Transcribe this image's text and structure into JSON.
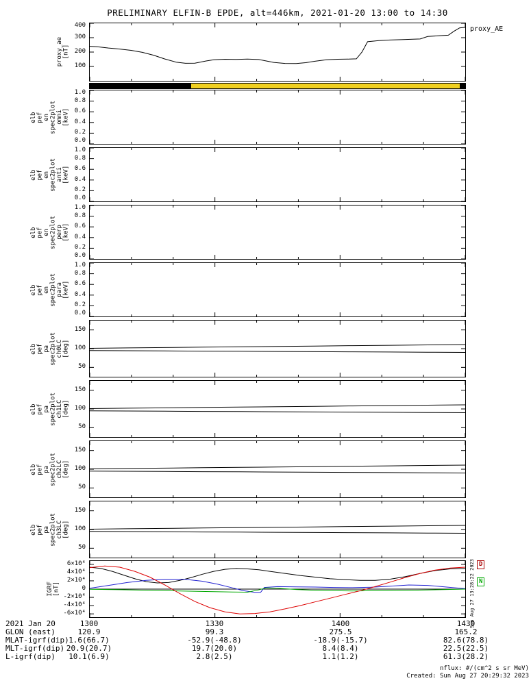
{
  "title": "PRELIMINARY ELFIN-B EPDE, alt=446km, 2021-01-20 13:00 to 14:30",
  "proxy_right_label": "proxy_AE",
  "fast_bar": {
    "segments": [
      {
        "color": "#000000",
        "width_pct": 27
      },
      {
        "color": "#f0d020",
        "width_pct": 71.5
      },
      {
        "color": "#000000",
        "width_pct": 1.5
      }
    ]
  },
  "x_axis": {
    "tick_labels": [
      "1300",
      "1330",
      "1400",
      "1430"
    ],
    "major_fracs": [
      0,
      0.3333,
      0.6667,
      1
    ],
    "minor_intervals": 9
  },
  "chart_data": {
    "type": "line",
    "time_range": "2021-01-20 13:00 to 14:30",
    "panels": [
      {
        "id": "proxy_ae",
        "ylabel": "proxy_ae\n[nT]",
        "ylim": [
          0,
          400
        ],
        "yticks": [
          {
            "v": 400,
            "label": "400"
          },
          {
            "v": 300,
            "label": "300"
          },
          {
            "v": 200,
            "label": "200"
          },
          {
            "v": 100,
            "label": "100"
          }
        ],
        "series": [
          {
            "name": "proxy_AE",
            "color": "#000000",
            "x": [
              0,
              0.02,
              0.05,
              0.08,
              0.11,
              0.14,
              0.17,
              0.2,
              0.23,
              0.255,
              0.28,
              0.31,
              0.33,
              0.36,
              0.39,
              0.42,
              0.45,
              0.47,
              0.49,
              0.52,
              0.55,
              0.575,
              0.6,
              0.63,
              0.66,
              0.69,
              0.71,
              0.725,
              0.74,
              0.77,
              0.8,
              0.83,
              0.86,
              0.88,
              0.9,
              0.93,
              0.955,
              0.97,
              0.985,
              1
            ],
            "y": [
              240,
              237,
              228,
              221,
              212,
              198,
              178,
              152,
              130,
              122,
              123,
              138,
              146,
              150,
              149,
              151,
              148,
              138,
              128,
              121,
              120,
              126,
              136,
              146,
              150,
              151,
              153,
              200,
              272,
              280,
              284,
              286,
              289,
              291,
              308,
              314,
              317,
              345,
              368,
              372
            ]
          }
        ]
      },
      {
        "id": "elb_pef_en_spec2plot_omni",
        "ylabel": "elb\npef\nen\nspec2plot\nomni\n[keV]",
        "ylim": [
          0,
          1
        ],
        "yticks": [
          {
            "v": 1,
            "label": "1.0"
          },
          {
            "v": 0.8,
            "label": "0.8"
          },
          {
            "v": 0.6,
            "label": "0.6"
          },
          {
            "v": 0.4,
            "label": "0.4"
          },
          {
            "v": 0.2,
            "label": "0.2"
          },
          {
            "v": 0,
            "label": "0.0"
          }
        ],
        "series": []
      },
      {
        "id": "elb_pef_en_spec2plot_anti",
        "ylabel": "elb\npef\nen\nspec2plot\nanti\n[keV]",
        "ylim": [
          0,
          1
        ],
        "yticks": [
          {
            "v": 1,
            "label": "1.0"
          },
          {
            "v": 0.8,
            "label": "0.8"
          },
          {
            "v": 0.6,
            "label": "0.6"
          },
          {
            "v": 0.4,
            "label": "0.4"
          },
          {
            "v": 0.2,
            "label": "0.2"
          },
          {
            "v": 0,
            "label": "0.0"
          }
        ],
        "series": []
      },
      {
        "id": "elb_pef_en_spec2plot_perp",
        "ylabel": "elb\npef\nen\nspec2plot\nperp\n[keV]",
        "ylim": [
          0,
          1
        ],
        "yticks": [
          {
            "v": 1,
            "label": "1.0"
          },
          {
            "v": 0.8,
            "label": "0.8"
          },
          {
            "v": 0.6,
            "label": "0.6"
          },
          {
            "v": 0.4,
            "label": "0.4"
          },
          {
            "v": 0.2,
            "label": "0.2"
          },
          {
            "v": 0,
            "label": "0.0"
          }
        ],
        "series": []
      },
      {
        "id": "elb_pef_en_spec2plot_para",
        "ylabel": "elb\npef\nen\nspec2plot\npara\n[keV]",
        "ylim": [
          0,
          1
        ],
        "yticks": [
          {
            "v": 1,
            "label": "1.0"
          },
          {
            "v": 0.8,
            "label": "0.8"
          },
          {
            "v": 0.6,
            "label": "0.6"
          },
          {
            "v": 0.4,
            "label": "0.4"
          },
          {
            "v": 0.2,
            "label": "0.2"
          },
          {
            "v": 0,
            "label": "0.0"
          }
        ],
        "series": []
      },
      {
        "id": "elb_pef_pa_spec2plot_ch0LC",
        "ylabel": "elb\npef\npa\nspec2plot\nch0LC\n[deg]",
        "ylim": [
          25,
          175
        ],
        "yticks": [
          {
            "v": 150,
            "label": "150"
          },
          {
            "v": 100,
            "label": "100"
          },
          {
            "v": 50,
            "label": "50"
          }
        ],
        "series": [
          {
            "name": "losscone-upper",
            "color": "#000000",
            "x": [
              0,
              0.1,
              0.2,
              0.3,
              0.4,
              0.5,
              0.6,
              0.7,
              0.8,
              0.9,
              1
            ],
            "y": [
              101,
              102,
              103,
              104,
              105,
              106,
              107,
              108,
              109,
              110,
              111
            ]
          },
          {
            "name": "losscone-lower",
            "color": "#000000",
            "x": [
              0,
              0.1,
              0.2,
              0.3,
              0.4,
              0.5,
              0.6,
              0.7,
              0.8,
              0.9,
              1
            ],
            "y": [
              95,
              94.5,
              94,
              93.5,
              93,
              92.5,
              92,
              91.5,
              91,
              90.5,
              90
            ]
          }
        ]
      },
      {
        "id": "elb_pef_pa_spec2plot_ch1LC",
        "ylabel": "elb\npef\npa\nspec2plot\nch1LC\n[deg]",
        "ylim": [
          25,
          175
        ],
        "yticks": [
          {
            "v": 150,
            "label": "150"
          },
          {
            "v": 100,
            "label": "100"
          },
          {
            "v": 50,
            "label": "50"
          }
        ],
        "series": [
          {
            "name": "losscone-upper",
            "color": "#000000",
            "x": [
              0,
              0.1,
              0.2,
              0.3,
              0.4,
              0.5,
              0.6,
              0.7,
              0.8,
              0.9,
              1
            ],
            "y": [
              101,
              102,
              103,
              104,
              105,
              106,
              107,
              108,
              109,
              110,
              111
            ]
          },
          {
            "name": "losscone-lower",
            "color": "#000000",
            "x": [
              0,
              0.1,
              0.2,
              0.3,
              0.4,
              0.5,
              0.6,
              0.7,
              0.8,
              0.9,
              1
            ],
            "y": [
              95,
              94.5,
              94,
              93.5,
              93,
              92.5,
              92,
              91.5,
              91,
              90.5,
              90
            ]
          }
        ]
      },
      {
        "id": "elb_pef_pa_spec2plot_ch2LC",
        "ylabel": "elb\npef\npa\nspec2plot\nch2LC\n[deg]",
        "ylim": [
          25,
          175
        ],
        "yticks": [
          {
            "v": 150,
            "label": "150"
          },
          {
            "v": 100,
            "label": "100"
          },
          {
            "v": 50,
            "label": "50"
          }
        ],
        "series": [
          {
            "name": "losscone-upper",
            "color": "#000000",
            "x": [
              0,
              0.1,
              0.2,
              0.3,
              0.4,
              0.5,
              0.6,
              0.7,
              0.8,
              0.9,
              1
            ],
            "y": [
              101,
              102,
              103,
              104,
              105,
              106,
              107,
              108,
              109,
              110,
              111
            ]
          },
          {
            "name": "losscone-lower",
            "color": "#000000",
            "x": [
              0,
              0.1,
              0.2,
              0.3,
              0.4,
              0.5,
              0.6,
              0.7,
              0.8,
              0.9,
              1
            ],
            "y": [
              95,
              94.5,
              94,
              93.5,
              93,
              92.5,
              92,
              91.5,
              91,
              90.5,
              90
            ]
          }
        ]
      },
      {
        "id": "elb_pef_pa_spec2plot_ch3LC",
        "ylabel": "elb\npef\npa\nspec2plot\nch3LC\n[deg]",
        "ylim": [
          25,
          175
        ],
        "yticks": [
          {
            "v": 150,
            "label": "150"
          },
          {
            "v": 100,
            "label": "100"
          },
          {
            "v": 50,
            "label": "50"
          }
        ],
        "series": [
          {
            "name": "losscone-upper",
            "color": "#000000",
            "x": [
              0,
              0.1,
              0.2,
              0.3,
              0.4,
              0.5,
              0.6,
              0.7,
              0.8,
              0.9,
              1
            ],
            "y": [
              101,
              102,
              103,
              104,
              105,
              106,
              107,
              108,
              109,
              110,
              111
            ]
          },
          {
            "name": "losscone-lower",
            "color": "#000000",
            "x": [
              0,
              0.1,
              0.2,
              0.3,
              0.4,
              0.5,
              0.6,
              0.7,
              0.8,
              0.9,
              1
            ],
            "y": [
              95,
              94.5,
              94,
              93.5,
              93,
              92.5,
              92,
              91.5,
              91,
              90.5,
              90
            ]
          }
        ]
      },
      {
        "id": "igrf",
        "ylabel": "IGRF\n[nT]",
        "ylim": [
          -6.8,
          6.8
        ],
        "unit_scale": "1e4 nT",
        "zeroline": true,
        "yticks": [
          {
            "v": 6,
            "label": "6×10⁴"
          },
          {
            "v": 4,
            "label": "4×10⁴"
          },
          {
            "v": 2,
            "label": "2×10⁴"
          },
          {
            "v": 0,
            "label": "0"
          },
          {
            "v": -2,
            "label": "-2×10⁴"
          },
          {
            "v": -4,
            "label": "-4×10⁴"
          },
          {
            "v": -6,
            "label": "-6×10⁴"
          }
        ],
        "series": [
          {
            "name": "b-total",
            "color": "#000000",
            "x": [
              0,
              0.03,
              0.06,
              0.09,
              0.12,
              0.15,
              0.18,
              0.21,
              0.24,
              0.27,
              0.3,
              0.33,
              0.36,
              0.39,
              0.42,
              0.45,
              0.48,
              0.52,
              0.56,
              0.6,
              0.64,
              0.68,
              0.72,
              0.76,
              0.8,
              0.84,
              0.88,
              0.92,
              0.96,
              1
            ],
            "y": [
              5.3,
              5.0,
              4.3,
              3.4,
              2.5,
              1.8,
              1.5,
              1.6,
              2.1,
              2.8,
              3.6,
              4.3,
              4.8,
              5.0,
              4.9,
              4.7,
              4.3,
              3.8,
              3.3,
              2.9,
              2.5,
              2.3,
              2.1,
              2.1,
              2.4,
              3.0,
              3.8,
              4.5,
              4.9,
              5.0
            ]
          },
          {
            "name": "b-blue",
            "color": "#2020d0",
            "x": [
              0,
              0.05,
              0.1,
              0.15,
              0.2,
              0.25,
              0.3,
              0.34,
              0.38,
              0.41,
              0.44,
              0.455,
              0.465,
              0.5,
              0.55,
              0.6,
              0.65,
              0.7,
              0.75,
              0.8,
              0.85,
              0.9,
              0.95,
              1
            ],
            "y": [
              0.2,
              0.9,
              1.6,
              2.1,
              2.4,
              2.4,
              1.9,
              1.2,
              0.3,
              -0.4,
              -0.8,
              -0.8,
              0.4,
              0.6,
              0.55,
              0.5,
              0.4,
              0.35,
              0.45,
              0.7,
              1.0,
              0.9,
              0.5,
              0.1
            ]
          },
          {
            "name": "b-green",
            "color": "#00a800",
            "x": [
              0,
              0.08,
              0.16,
              0.24,
              0.32,
              0.38,
              0.42,
              0.45,
              0.47,
              0.5,
              0.55,
              0.6,
              0.65,
              0.7,
              0.75,
              0.8,
              0.85,
              0.9,
              0.95,
              1
            ],
            "y": [
              -0.05,
              -0.15,
              -0.3,
              -0.45,
              -0.6,
              -0.7,
              -0.75,
              -0.2,
              0.3,
              0.2,
              -0.1,
              -0.3,
              -0.4,
              -0.45,
              -0.4,
              -0.35,
              -0.3,
              -0.2,
              -0.1,
              0
            ]
          },
          {
            "name": "b-red",
            "color": "#dd0000",
            "x": [
              0,
              0.04,
              0.08,
              0.12,
              0.16,
              0.2,
              0.24,
              0.28,
              0.32,
              0.36,
              0.4,
              0.44,
              0.48,
              0.52,
              0.56,
              0.6,
              0.64,
              0.68,
              0.72,
              0.76,
              0.8,
              0.84,
              0.88,
              0.92,
              0.96,
              1
            ],
            "y": [
              5.2,
              5.6,
              5.3,
              4.3,
              2.9,
              1.0,
              -1.1,
              -3.0,
              -4.5,
              -5.5,
              -6.0,
              -5.9,
              -5.5,
              -4.8,
              -4.0,
              -3.1,
              -2.2,
              -1.3,
              -0.4,
              0.6,
              1.7,
              2.8,
              3.8,
              4.6,
              5.1,
              5.3
            ]
          }
        ]
      }
    ]
  },
  "igrf_legend": [
    {
      "label": "D",
      "color": "#aa0000"
    },
    {
      "label": "N",
      "color": "#00a800"
    }
  ],
  "side_timestamp": "Sun Aug 27 13:28:22 2023",
  "footer": {
    "rows": [
      {
        "label": "2021 Jan 20",
        "values": [
          "1300",
          "1330",
          "1400",
          "1430"
        ]
      },
      {
        "label": "GLON (east)",
        "values": [
          "120.9",
          "99.3",
          "275.5",
          "165.2"
        ]
      },
      {
        "label": "MLAT-igrf(dip)",
        "values": [
          "1.6(66.7)",
          "-52.9(-48.8)",
          "-18.9(-15.7)",
          "82.6(78.8)"
        ]
      },
      {
        "label": "MLT-igrf(dip)",
        "values": [
          "20.9(20.7)",
          "19.7(20.0)",
          "8.4(8.4)",
          "22.5(22.5)"
        ]
      },
      {
        "label": "L-igrf(dip)",
        "values": [
          "10.1(6.9)",
          "2.8(2.5)",
          "1.1(1.2)",
          "61.3(28.2)"
        ]
      }
    ]
  },
  "notes": [
    "nflux: #/(cm^2 s sr MeV)",
    "Created: Sun Aug 27 20:29:32 2023"
  ]
}
